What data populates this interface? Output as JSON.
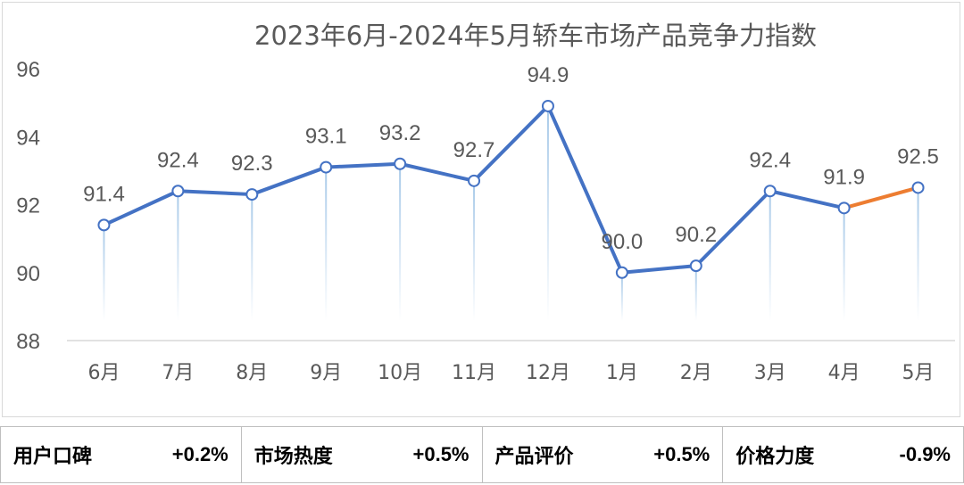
{
  "chart_data": {
    "type": "line",
    "title": "2023年6月-2024年5月轿车市场产品竞争力指数",
    "categories": [
      "6月",
      "7月",
      "8月",
      "9月",
      "10月",
      "11月",
      "12月",
      "1月",
      "2月",
      "3月",
      "4月",
      "5月"
    ],
    "values": [
      91.4,
      92.4,
      92.3,
      93.1,
      93.2,
      92.7,
      94.9,
      90.0,
      90.2,
      92.4,
      91.9,
      92.5
    ],
    "data_labels": [
      "91.4",
      "92.4",
      "92.3",
      "93.1",
      "93.2",
      "92.7",
      "94.9",
      "90.0",
      "90.2",
      "92.4",
      "91.9",
      "92.5"
    ],
    "ylim": [
      88,
      96
    ],
    "yticks": [
      "88",
      "90",
      "92",
      "94",
      "96"
    ],
    "grid": false,
    "colors": {
      "line": "#4472c4",
      "last_segment": "#ed7d31",
      "marker_fill": "#ffffff",
      "text": "#595959"
    }
  },
  "summary": [
    {
      "label": "用户口碑",
      "value": "+0.2%"
    },
    {
      "label": "市场热度",
      "value": "+0.5%"
    },
    {
      "label": "产品评价",
      "value": "+0.5%"
    },
    {
      "label": "价格力度",
      "value": "-0.9%"
    }
  ]
}
